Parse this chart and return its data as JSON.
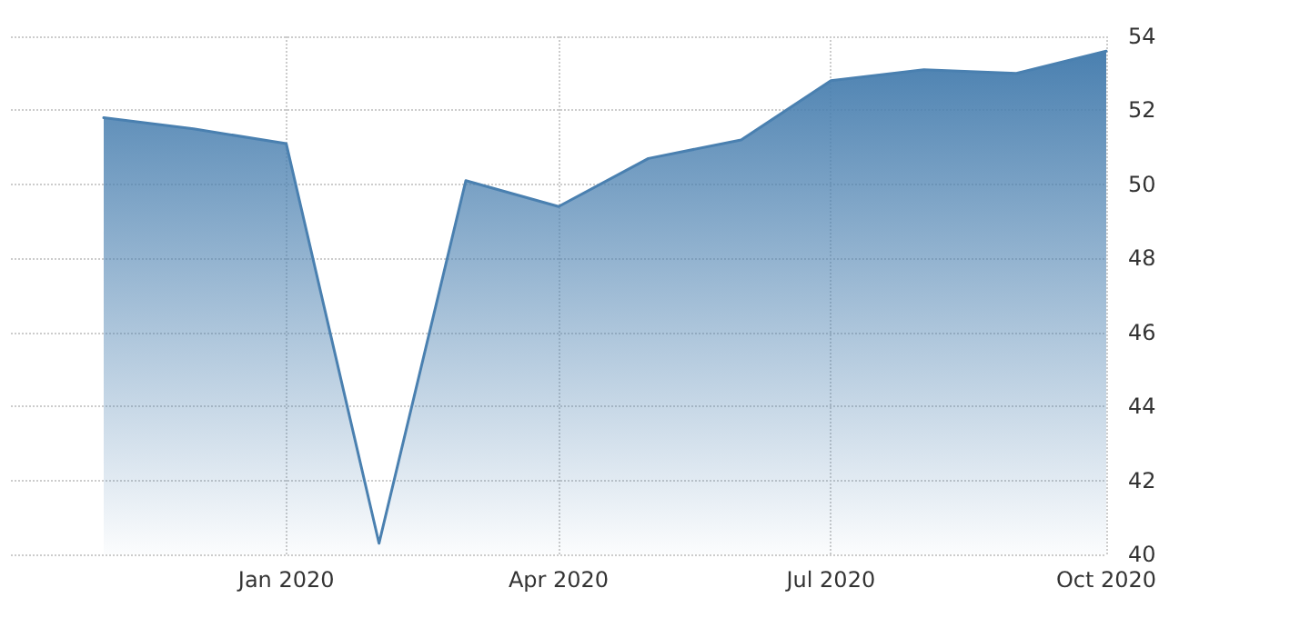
{
  "chart_data": {
    "type": "area",
    "x": [
      "2019-11",
      "2019-12",
      "2020-01",
      "2020-02",
      "2020-03",
      "2020-04",
      "2020-05",
      "2020-06",
      "2020-07",
      "2020-08",
      "2020-09",
      "2020-10"
    ],
    "series": [
      {
        "color": "#4a80b0",
        "values": [
          51.8,
          51.5,
          51.1,
          40.3,
          50.1,
          49.4,
          50.7,
          51.2,
          52.8,
          53.1,
          53.0,
          53.6
        ]
      }
    ],
    "xlim": [
      "2019-10",
      "2020-10"
    ],
    "xticks": [
      {
        "value": "2020-01",
        "label": "Jan 2020"
      },
      {
        "value": "2020-04",
        "label": "Apr 2020"
      },
      {
        "value": "2020-07",
        "label": "Jul 2020"
      },
      {
        "value": "2020-10",
        "label": "Oct 2020"
      }
    ],
    "ylim": [
      40,
      54
    ],
    "yticks": [
      40,
      42,
      44,
      46,
      48,
      50,
      52,
      54
    ],
    "grid": true,
    "marker": "none",
    "line_style": "solid"
  }
}
